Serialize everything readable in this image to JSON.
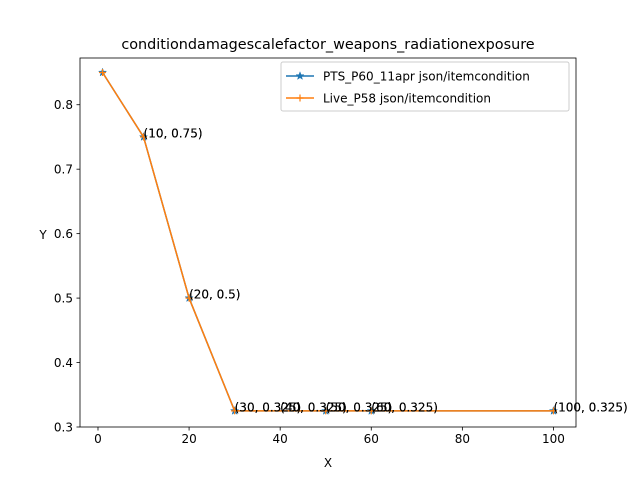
{
  "chart_data": {
    "type": "line",
    "title": "conditiondamagescalefactor_weapons_radiationexposure",
    "xlabel": "X",
    "ylabel": "Y",
    "xlim": [
      -3.95,
      104.95
    ],
    "ylim": [
      0.3,
      0.8725
    ],
    "grid": false,
    "legend_position": "top-right",
    "x_ticks": [
      0,
      20,
      40,
      60,
      80,
      100
    ],
    "y_ticks": [
      0.3,
      0.4,
      0.5,
      0.6,
      0.7,
      0.8
    ],
    "x_tick_labels": [
      "0",
      "20",
      "40",
      "60",
      "80",
      "100"
    ],
    "y_tick_labels": [
      "0.3",
      "0.4",
      "0.5",
      "0.6",
      "0.7",
      "0.8"
    ],
    "series": [
      {
        "name": "PTS_P60_11apr json/itemcondition",
        "color": "#1f77b4",
        "marker": "star",
        "x": [
          1,
          10,
          20,
          30,
          50,
          60,
          100
        ],
        "y": [
          0.85,
          0.75,
          0.5,
          0.325,
          0.325,
          0.325,
          0.325
        ]
      },
      {
        "name": "Live_P58 json/itemcondition",
        "color": "#ff7f0e",
        "marker": "plus",
        "x": [
          1,
          10,
          20,
          30,
          50,
          60,
          100
        ],
        "y": [
          0.85,
          0.75,
          0.5,
          0.325,
          0.325,
          0.325,
          0.325
        ]
      }
    ],
    "annotations": [
      {
        "x": 10,
        "y": 0.75,
        "text": "(10, 0.75)"
      },
      {
        "x": 20,
        "y": 0.5,
        "text": "(20, 0.5)"
      },
      {
        "x": 30,
        "y": 0.325,
        "text": "(30, 0.325)"
      },
      {
        "x": 40,
        "y": 0.325,
        "text": "(40, 0.325)"
      },
      {
        "x": 50,
        "y": 0.325,
        "text": "(50, 0.325)"
      },
      {
        "x": 60,
        "y": 0.325,
        "text": "(60, 0.325)"
      },
      {
        "x": 100,
        "y": 0.325,
        "text": "(100, 0.325)"
      }
    ]
  }
}
